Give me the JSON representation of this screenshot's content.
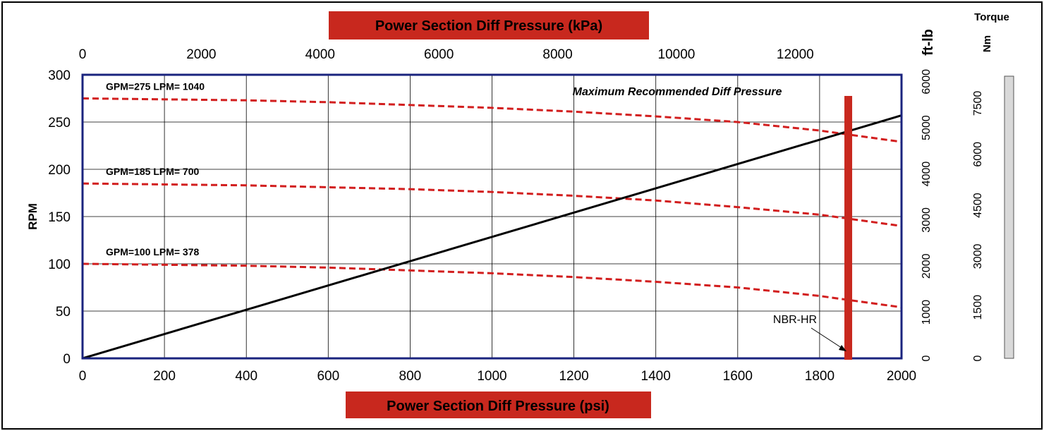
{
  "chart_data": {
    "type": "line",
    "x_bottom": {
      "label": "Power Section Diff Pressure (psi)",
      "range": [
        0,
        2000
      ],
      "ticks": [
        "0",
        "200",
        "400",
        "600",
        "800",
        "1000",
        "1200",
        "1400",
        "1600",
        "1800",
        "2000"
      ]
    },
    "x_top": {
      "label": "Power Section Diff Pressure (kPa)",
      "ticks": [
        "0",
        "2000",
        "4000",
        "6000",
        "8000",
        "10000",
        "12000"
      ]
    },
    "y_left": {
      "label": "RPM",
      "range": [
        0,
        300
      ],
      "ticks": [
        "0",
        "50",
        "100",
        "150",
        "200",
        "250",
        "300"
      ]
    },
    "y_right": {
      "label": "ft-lb",
      "ticks": [
        "0",
        "1000",
        "2000",
        "3000",
        "4000",
        "5000",
        "6000"
      ]
    },
    "y_torque": {
      "title": "Torque",
      "unit": "Nm",
      "ticks": [
        "0",
        "1500",
        "3000",
        "4500",
        "6000",
        "7500"
      ]
    },
    "grid": true,
    "series": [
      {
        "name": "GPM=275 LPM= 1040",
        "style": "dashed",
        "color": "#d21e1e",
        "x": [
          0,
          200,
          400,
          600,
          800,
          1000,
          1200,
          1400,
          1600,
          1800,
          2000
        ],
        "y": [
          275,
          274,
          273,
          271,
          268,
          265,
          261,
          256,
          250,
          241,
          229
        ]
      },
      {
        "name": "GPM=185 LPM= 700",
        "style": "dashed",
        "color": "#d21e1e",
        "x": [
          0,
          200,
          400,
          600,
          800,
          1000,
          1200,
          1400,
          1600,
          1800,
          2000
        ],
        "y": [
          185,
          184,
          183,
          181,
          179,
          176,
          172,
          167,
          160,
          152,
          140
        ]
      },
      {
        "name": "GPM=100 LPM= 378",
        "style": "dashed",
        "color": "#d21e1e",
        "x": [
          0,
          200,
          400,
          600,
          800,
          1000,
          1200,
          1400,
          1600,
          1800,
          2000
        ],
        "y": [
          100,
          99,
          98,
          96,
          93,
          90,
          86,
          81,
          75,
          66,
          54
        ]
      },
      {
        "style": "solid",
        "color": "#000000",
        "x": [
          0,
          2000
        ],
        "y": [
          0,
          257
        ]
      }
    ],
    "annotations": {
      "max_diff_pressure": {
        "text": "Maximum Recommended Diff Pressure",
        "x": 1870,
        "color": "#c8281e"
      },
      "nbr": {
        "text": "NBR-HR"
      }
    }
  }
}
